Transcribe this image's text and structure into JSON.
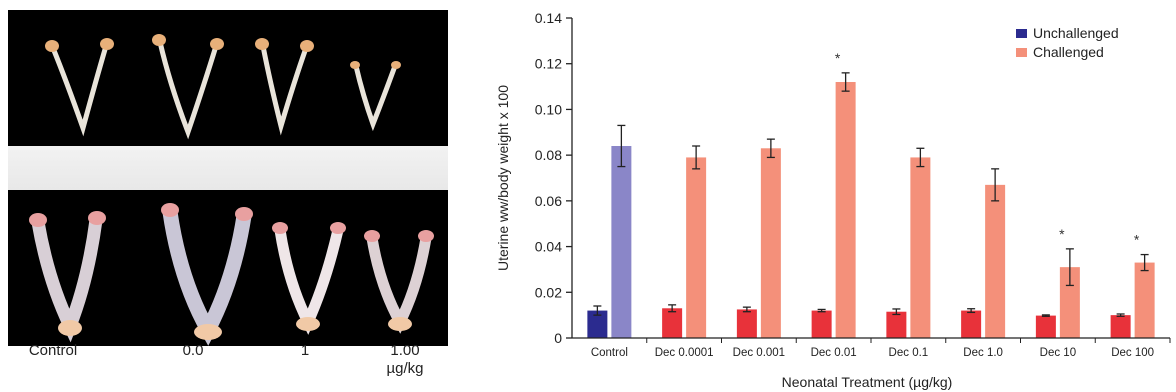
{
  "photos": {
    "labels": [
      {
        "line1": "Control",
        "line2": ""
      },
      {
        "line1": "0.0",
        "line2": ""
      },
      {
        "line1": "1",
        "line2": ""
      },
      {
        "line1": "1.00",
        "line2": "µg/kg"
      }
    ]
  },
  "chart_data": {
    "type": "bar",
    "title": "",
    "xlabel": "Neonatal Treatment (µg/kg)",
    "ylabel": "Uterine ww/body weight x 100",
    "ylim": [
      0,
      0.14
    ],
    "yticks": [
      "0",
      "0.02",
      "0.04",
      "0.06",
      "0.08",
      "0.10",
      "0.12",
      "0.14"
    ],
    "categories": [
      "Control",
      "Dec 0.0001",
      "Dec 0.001",
      "Dec 0.01",
      "Dec 0.1",
      "Dec 1.0",
      "Dec 10",
      "Dec 100"
    ],
    "legend_position": "top-right",
    "series": [
      {
        "name": "Unchallenged",
        "legend_color": "#2b2b8f",
        "colors": [
          "#2b2b8f",
          "#e8323a",
          "#e8323a",
          "#e8323a",
          "#e8323a",
          "#e8323a",
          "#e8323a",
          "#e8323a"
        ],
        "values": [
          0.012,
          0.013,
          0.0125,
          0.012,
          0.0115,
          0.012,
          0.0098,
          0.01
        ],
        "errors": [
          0.002,
          0.0015,
          0.001,
          0.0005,
          0.0012,
          0.0008,
          0.0003,
          0.0005
        ]
      },
      {
        "name": "Challenged",
        "legend_color": "#f4907a",
        "colors": [
          "#8a86c8",
          "#f4907a",
          "#f4907a",
          "#f4907a",
          "#f4907a",
          "#f4907a",
          "#f4907a",
          "#f4907a"
        ],
        "values": [
          0.084,
          0.079,
          0.083,
          0.112,
          0.079,
          0.067,
          0.031,
          0.033
        ],
        "errors": [
          0.009,
          0.005,
          0.004,
          0.004,
          0.004,
          0.007,
          0.008,
          0.0035
        ]
      }
    ],
    "significance": [
      "",
      "",
      "",
      "*",
      "",
      "",
      "*",
      "*"
    ]
  }
}
